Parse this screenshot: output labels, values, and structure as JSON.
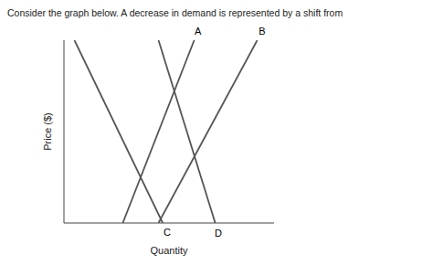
{
  "chart_data": {
    "type": "line",
    "title": "Consider the graph below. A decrease in demand is represented by a shift from",
    "xlabel": "Quantity",
    "ylabel": "Price ($)",
    "color": "#555555",
    "xlim": [
      0,
      1
    ],
    "ylim": [
      0,
      1
    ],
    "xticks": [],
    "yticks": [],
    "grid": false,
    "tick_labels": false,
    "series": [
      {
        "name": "A",
        "x": [
          0.28,
          0.62
        ],
        "values": [
          0.0,
          1.0
        ]
      },
      {
        "name": "B",
        "x": [
          0.45,
          0.92
        ],
        "values": [
          0.0,
          1.0
        ]
      },
      {
        "name": "C",
        "x": [
          0.05,
          0.47
        ],
        "values": [
          1.0,
          0.0
        ]
      },
      {
        "name": "D",
        "x": [
          0.45,
          0.72
        ],
        "values": [
          1.0,
          0.0
        ]
      }
    ]
  }
}
